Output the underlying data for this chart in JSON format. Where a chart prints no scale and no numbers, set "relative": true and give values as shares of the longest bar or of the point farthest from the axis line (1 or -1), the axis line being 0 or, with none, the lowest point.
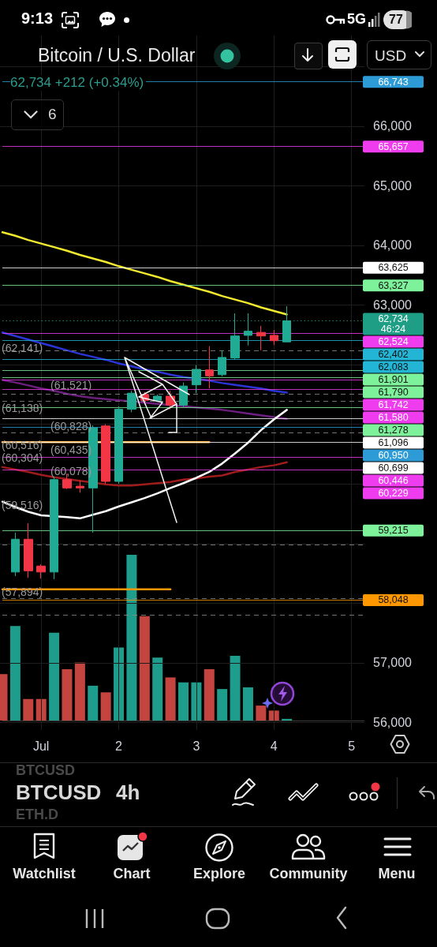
{
  "chart_data": [
    {
      "type": "candlestick",
      "title": "Bitcoin / U.S. Dollar",
      "subtitle": "62,734 +212 (+0.34%)",
      "categories": [
        null,
        null,
        null,
        "Jul",
        null,
        null,
        null,
        null,
        null,
        "2",
        null,
        null,
        null,
        null,
        null,
        "3",
        null,
        null,
        null,
        null,
        null,
        "4",
        null,
        null,
        null,
        null,
        null,
        "5",
        null
      ],
      "ohlc": [
        null,
        [
          58520,
          59180,
          58450,
          59070
        ],
        [
          59070,
          59340,
          58420,
          58540
        ],
        [
          58620,
          58650,
          58410,
          58520
        ],
        [
          58520,
          60120,
          58400,
          60070
        ],
        [
          60070,
          60170,
          59910,
          59930
        ],
        [
          59960,
          60050,
          59850,
          59930
        ],
        [
          59930,
          60980,
          59180,
          60940
        ],
        [
          60970,
          61000,
          60000,
          60040
        ],
        [
          60040,
          61300,
          60000,
          61250
        ],
        [
          61250,
          61560,
          61200,
          61520
        ],
        [
          61500,
          61540,
          61330,
          61400
        ],
        [
          61400,
          61500,
          61380,
          61470
        ],
        [
          61470,
          61560,
          61250,
          61320
        ],
        [
          61320,
          61700,
          61290,
          61640
        ],
        [
          61660,
          61990,
          61520,
          61920
        ],
        [
          61910,
          62310,
          61600,
          61810
        ],
        [
          61830,
          62240,
          61800,
          62120
        ],
        [
          62110,
          62860,
          62080,
          62480
        ],
        [
          62490,
          62860,
          62320,
          62560
        ],
        [
          62540,
          62650,
          62240,
          62480
        ],
        [
          62490,
          62580,
          62330,
          62400
        ],
        [
          62380,
          62980,
          62380,
          62734
        ],
        null,
        null,
        null,
        null,
        null,
        null
      ],
      "colors": [
        null,
        "#22ab94",
        "#f23645",
        "#f23645",
        "#22ab94",
        "#f23645",
        "#f23645",
        "#22ab94",
        "#f23645",
        "#22ab94",
        "#22ab94",
        "#f23645",
        "#22ab94",
        "#f23645",
        "#22ab94",
        "#22ab94",
        "#f23645",
        "#22ab94",
        "#22ab94",
        "#22ab94",
        "#f23645",
        "#f23645",
        "#22ab94",
        null,
        null,
        null,
        null,
        null,
        null
      ],
      "series": [
        {
          "type": "line",
          "color": "#f2ea2e",
          "values": [
            64220,
            64160,
            64090,
            64030,
            63970,
            63910,
            63840,
            63780,
            63720,
            63650,
            63590,
            63530,
            63470,
            63400,
            63340,
            63280,
            63220,
            63150,
            63090,
            63030,
            62960,
            62900,
            62840,
            null,
            null,
            null,
            null,
            null,
            null
          ]
        },
        {
          "type": "line",
          "color": "#2b35d6",
          "values": [
            62540,
            62480,
            62420,
            62360,
            62300,
            62240,
            62180,
            62130,
            62080,
            62020,
            61970,
            61920,
            61880,
            61830,
            61790,
            61760,
            61730,
            61690,
            61660,
            61630,
            61600,
            61560,
            61530,
            null,
            null,
            null,
            null,
            null,
            null
          ]
        },
        {
          "type": "line",
          "color": "#6d1f80",
          "values": [
            61740,
            61700,
            61650,
            61600,
            61560,
            61510,
            61470,
            61440,
            61420,
            61400,
            61380,
            61360,
            61340,
            61320,
            61300,
            61280,
            61260,
            61240,
            61210,
            61180,
            61150,
            61120,
            61090,
            null,
            null,
            null,
            null,
            null,
            null
          ]
        },
        {
          "type": "line",
          "color": "#a01c1c",
          "values": [
            60280,
            60240,
            60200,
            60150,
            60110,
            60080,
            60050,
            null,
            59990,
            59970,
            59970,
            59990,
            60010,
            60030,
            60070,
            60090,
            60120,
            60140,
            60200,
            60240,
            60280,
            60310,
            60360,
            null,
            null,
            null,
            null,
            null,
            null
          ]
        },
        {
          "type": "line",
          "color": "#ffffff",
          "values": [
            59700,
            59610,
            59530,
            59470,
            null,
            59440,
            59420,
            59480,
            59540,
            59620,
            59690,
            59760,
            59840,
            59930,
            60010,
            60100,
            60200,
            60340,
            60510,
            60690,
            60900,
            61080,
            61240,
            null,
            null,
            null,
            null,
            null,
            null
          ]
        },
        {
          "type": "line",
          "color": "#ffb74d",
          "values": [
            60700,
            60700,
            60700,
            60700,
            60700,
            60700,
            60700,
            null,
            null,
            null,
            60700,
            60700,
            60700,
            60700,
            60700,
            60700,
            60700,
            null,
            null,
            null,
            null,
            null,
            null,
            null,
            null,
            null,
            null,
            null,
            null
          ]
        },
        {
          "type": "line",
          "color": "#ff9800",
          "values": [
            58230,
            58230,
            58230,
            58230,
            58230,
            58230,
            58230,
            58230,
            58230,
            58230,
            58230,
            58230,
            58230,
            58230,
            null,
            null,
            null,
            null,
            null,
            null,
            null,
            null,
            null,
            null,
            null,
            null,
            null,
            null,
            null
          ]
        }
      ],
      "ylim": [
        55870,
        67520
      ],
      "yticks": [
        {
          "value": 56000,
          "label": "56,000"
        },
        {
          "value": 57000,
          "label": "57,000"
        },
        {
          "value": 58000,
          "label": null
        },
        {
          "value": 59000,
          "label": null
        },
        {
          "value": 60000,
          "label": null
        },
        {
          "value": 61000,
          "label": null
        },
        {
          "value": 62000,
          "label": null
        },
        {
          "value": 63000,
          "label": "63,000"
        },
        {
          "value": 64000,
          "label": "64,000"
        },
        {
          "value": 65000,
          "label": "65,000"
        },
        {
          "value": 66000,
          "label": "66,000"
        },
        {
          "value": 67000,
          "label": null
        }
      ],
      "grid": true,
      "ref_lines": [
        {
          "axis": "y",
          "value": 66743,
          "label": "66,743",
          "color": "#2d9bd6"
        },
        {
          "axis": "y",
          "value": 65657,
          "label": "65,657",
          "color": "#ee3cee"
        },
        {
          "axis": "y",
          "value": 63625,
          "label": "63,625",
          "color": "#ffffff"
        },
        {
          "axis": "y",
          "value": 63327,
          "label": "63,327",
          "color": "#7ef29a"
        },
        {
          "axis": "y",
          "value": 62734,
          "label": "62,734\n46:24",
          "color": "#1f9e86",
          "line_style": "dotted"
        },
        {
          "axis": "y",
          "value": 62524,
          "label": "62,524",
          "color": "#ee3cee"
        },
        {
          "axis": "y",
          "value": 62402,
          "label": "62,402",
          "color": "#22b5d6"
        },
        {
          "axis": "y",
          "value": 62083,
          "label": "62,083",
          "color": "#22b5d6"
        },
        {
          "axis": "y",
          "value": 61901,
          "label": "61,901",
          "color": "#7ef29a"
        },
        {
          "axis": "y",
          "value": 61790,
          "label": "61,790",
          "color": "#7ef29a"
        },
        {
          "axis": "y",
          "value": 61742,
          "label": "61,742",
          "color": "#ee3cee"
        },
        {
          "axis": "y",
          "value": 61580,
          "label": "61,580",
          "color": "#ee3cee"
        },
        {
          "axis": "y",
          "value": 61278,
          "label": "61,278",
          "color": "#7ef29a"
        },
        {
          "axis": "y",
          "value": 61096,
          "label": "61,096",
          "color": "#ffffff"
        },
        {
          "axis": "y",
          "value": 60950,
          "label": "60,950",
          "color": "#2d9bd6"
        },
        {
          "axis": "y",
          "value": 60699,
          "label": "60,699",
          "color": "#ffffff"
        },
        {
          "axis": "y",
          "value": 60446,
          "label": "60,446",
          "color": "#ee3cee"
        },
        {
          "axis": "y",
          "value": 60229,
          "label": "60,229",
          "color": "#ee3cee"
        },
        {
          "axis": "y",
          "value": 59215,
          "label": "59,215",
          "color": "#7ef29a"
        },
        {
          "axis": "y",
          "value": 58048,
          "label": "58,048",
          "color": "#ff9800"
        },
        {
          "axis": "y",
          "value": 62230,
          "color": "#8f8f8f",
          "line_style": "dashed"
        },
        {
          "axis": "y",
          "value": 61500,
          "color": "#8f8f8f",
          "line_style": "dashed"
        },
        {
          "axis": "y",
          "value": 61390,
          "color": "#8f8f8f",
          "line_style": "dashed"
        },
        {
          "axis": "y",
          "value": 60860,
          "color": "#8f8f8f",
          "line_style": "dashed"
        },
        {
          "axis": "y",
          "value": 58980,
          "color": "#8f8f8f",
          "line_style": "dashed"
        },
        {
          "axis": "y",
          "value": 58080,
          "color": "#8f8f8f",
          "line_style": "dashed"
        },
        {
          "axis": "y",
          "value": 57800,
          "color": "#8f8f8f",
          "line_style": "dashed"
        }
      ],
      "annotations": [
        "9:13",
        "5G",
        "77",
        "6",
        "USD",
        "BTCUSD",
        "BTCUSD",
        "4h",
        "ETH.D",
        "Watchlist",
        "Chart",
        "Explore",
        "Community",
        "Menu",
        "(57,894)",
        {
          "text": "(62,141)",
          "y": 62141
        },
        {
          "text": "(61,521)",
          "y": 61521
        },
        {
          "text": "(61,138)",
          "y": 61138
        },
        {
          "text": "(60,828)",
          "y": 60828
        },
        {
          "text": "(60,516)",
          "y": 60516
        },
        {
          "text": "(60,435)",
          "y": 60435
        },
        {
          "text": "(60,304)",
          "y": 60304
        },
        {
          "text": "(60,078)",
          "y": 60078
        },
        {
          "text": "(59,516)",
          "y": 59516
        }
      ]
    },
    {
      "type": "bar",
      "relative": true,
      "categories": [
        null,
        null,
        null,
        null,
        null,
        null,
        null,
        null,
        null,
        null,
        null,
        null,
        null,
        null,
        null,
        null,
        null,
        null,
        null,
        null,
        null,
        null,
        null,
        null,
        null,
        null,
        null,
        null,
        null
      ],
      "values": [
        0.28,
        0.57,
        0.13,
        0.13,
        0.53,
        0.31,
        0.35,
        0.21,
        0.17,
        0.44,
        1,
        0.63,
        0.38,
        0.26,
        0.23,
        0.23,
        0.31,
        0.19,
        0.39,
        0.2,
        0.09,
        0.06,
        0.01,
        null,
        null,
        null,
        null,
        null,
        null
      ],
      "colors": [
        "#c4453f",
        "#1f9d8c",
        "#c4453f",
        "#c4453f",
        "#1f9d8c",
        "#c4453f",
        "#c4453f",
        "#1f9d8c",
        "#c4453f",
        "#1f9d8c",
        "#1f9d8c",
        "#c4453f",
        "#1f9d8c",
        "#c4453f",
        "#1f9d8c",
        "#1f9d8c",
        "#c4453f",
        "#1f9d8c",
        "#1f9d8c",
        "#1f9d8c",
        "#c4453f",
        "#c4453f",
        "#1f9d8c",
        null,
        null,
        null,
        null,
        null,
        null
      ]
    }
  ]
}
